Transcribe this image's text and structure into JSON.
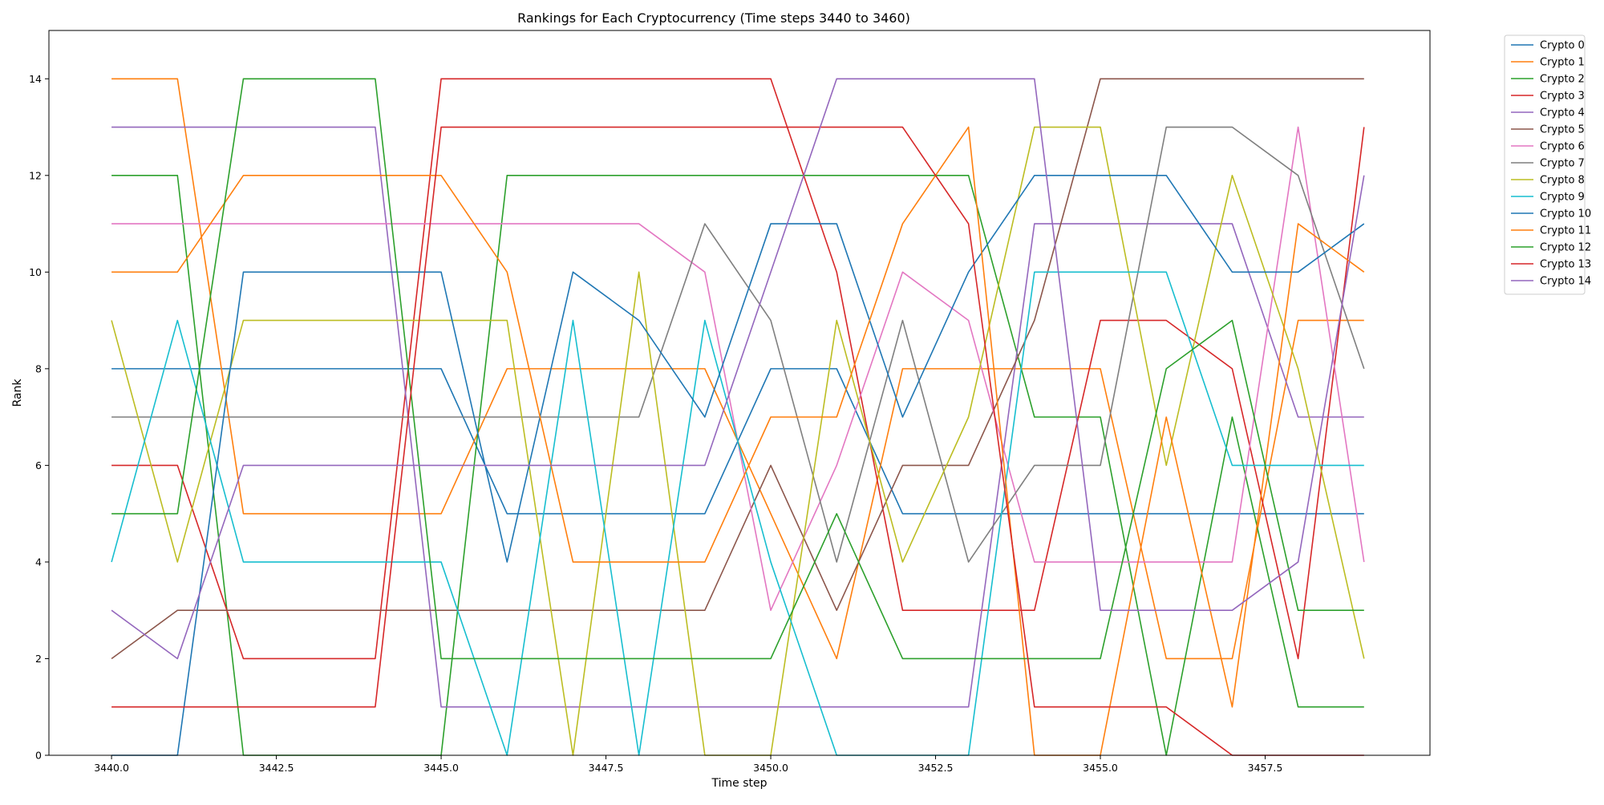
{
  "chart_data": {
    "type": "line",
    "title": "Rankings for Each Cryptocurrency (Time steps 3440 to 3460)",
    "xlabel": "Time step",
    "ylabel": "Rank",
    "xlim": [
      3439.05,
      3460.0
    ],
    "ylim": [
      0,
      15
    ],
    "xticks": [
      3440.0,
      3442.5,
      3445.0,
      3447.5,
      3450.0,
      3452.5,
      3455.0,
      3457.5
    ],
    "xtick_labels": [
      "3440.0",
      "3442.5",
      "3445.0",
      "3447.5",
      "3450.0",
      "3452.5",
      "3455.0",
      "3457.5"
    ],
    "yticks": [
      0,
      2,
      4,
      6,
      8,
      10,
      12,
      14
    ],
    "ytick_labels": [
      "0",
      "2",
      "4",
      "6",
      "8",
      "10",
      "12",
      "14"
    ],
    "grid": false,
    "legend_position": "outside-top-right",
    "x": [
      3440,
      3441,
      3442,
      3443,
      3444,
      3445,
      3446,
      3447,
      3448,
      3449,
      3450,
      3451,
      3452,
      3453,
      3454,
      3455,
      3456,
      3457,
      3458,
      3459
    ],
    "series": [
      {
        "name": "Crypto 0",
        "color": "#1f77b4",
        "values": [
          8,
          8,
          8,
          8,
          8,
          8,
          5,
          5,
          5,
          5,
          8,
          8,
          5,
          5,
          5,
          5,
          5,
          5,
          5,
          5
        ]
      },
      {
        "name": "Crypto 1",
        "color": "#ff7f0e",
        "values": [
          14,
          14,
          5,
          5,
          5,
          5,
          8,
          8,
          8,
          8,
          5,
          2,
          8,
          8,
          8,
          8,
          2,
          2,
          9,
          9
        ]
      },
      {
        "name": "Crypto 2",
        "color": "#2ca02c",
        "values": [
          12,
          12,
          0,
          0,
          0,
          0,
          12,
          12,
          12,
          12,
          12,
          12,
          12,
          12,
          7,
          7,
          0,
          7,
          1,
          1
        ]
      },
      {
        "name": "Crypto 3",
        "color": "#d62728",
        "values": [
          6,
          6,
          2,
          2,
          2,
          14,
          14,
          14,
          14,
          14,
          14,
          10,
          3,
          3,
          3,
          9,
          9,
          8,
          2,
          13
        ]
      },
      {
        "name": "Crypto 4",
        "color": "#9467bd",
        "values": [
          13,
          13,
          13,
          13,
          13,
          1,
          1,
          1,
          1,
          1,
          1,
          1,
          1,
          1,
          11,
          11,
          11,
          11,
          7,
          7
        ]
      },
      {
        "name": "Crypto 5",
        "color": "#8c564b",
        "values": [
          2,
          3,
          3,
          3,
          3,
          3,
          3,
          3,
          3,
          3,
          6,
          3,
          6,
          6,
          9,
          14,
          14,
          14,
          14,
          14
        ]
      },
      {
        "name": "Crypto 6",
        "color": "#e377c2",
        "values": [
          11,
          11,
          11,
          11,
          11,
          11,
          11,
          11,
          11,
          10,
          3,
          6,
          10,
          9,
          4,
          4,
          4,
          4,
          13,
          4
        ]
      },
      {
        "name": "Crypto 7",
        "color": "#7f7f7f",
        "values": [
          7,
          7,
          7,
          7,
          7,
          7,
          7,
          7,
          7,
          11,
          9,
          4,
          9,
          4,
          6,
          6,
          13,
          13,
          12,
          8
        ]
      },
      {
        "name": "Crypto 8",
        "color": "#bcbd22",
        "values": [
          9,
          4,
          9,
          9,
          9,
          9,
          9,
          0,
          10,
          0,
          0,
          9,
          4,
          7,
          13,
          13,
          6,
          12,
          8,
          2
        ]
      },
      {
        "name": "Crypto 9",
        "color": "#17becf",
        "values": [
          4,
          9,
          4,
          4,
          4,
          4,
          0,
          9,
          0,
          9,
          4,
          0,
          0,
          0,
          10,
          10,
          10,
          6,
          6,
          6
        ]
      },
      {
        "name": "Crypto 10",
        "color": "#1f77b4",
        "values": [
          0,
          0,
          10,
          10,
          10,
          10,
          4,
          10,
          9,
          7,
          11,
          11,
          7,
          10,
          12,
          12,
          12,
          10,
          10,
          11
        ]
      },
      {
        "name": "Crypto 11",
        "color": "#ff7f0e",
        "values": [
          10,
          10,
          12,
          12,
          12,
          12,
          10,
          4,
          4,
          4,
          7,
          7,
          11,
          13,
          0,
          0,
          7,
          1,
          11,
          10
        ]
      },
      {
        "name": "Crypto 12",
        "color": "#2ca02c",
        "values": [
          5,
          5,
          14,
          14,
          14,
          2,
          2,
          2,
          2,
          2,
          2,
          5,
          2,
          2,
          2,
          2,
          8,
          9,
          3,
          3
        ]
      },
      {
        "name": "Crypto 13",
        "color": "#d62728",
        "values": [
          1,
          1,
          1,
          1,
          1,
          13,
          13,
          13,
          13,
          13,
          13,
          13,
          13,
          11,
          1,
          1,
          1,
          0,
          0,
          0
        ]
      },
      {
        "name": "Crypto 14",
        "color": "#9467bd",
        "values": [
          3,
          2,
          6,
          6,
          6,
          6,
          6,
          6,
          6,
          6,
          10,
          14,
          14,
          14,
          14,
          3,
          3,
          3,
          4,
          12
        ]
      }
    ]
  }
}
